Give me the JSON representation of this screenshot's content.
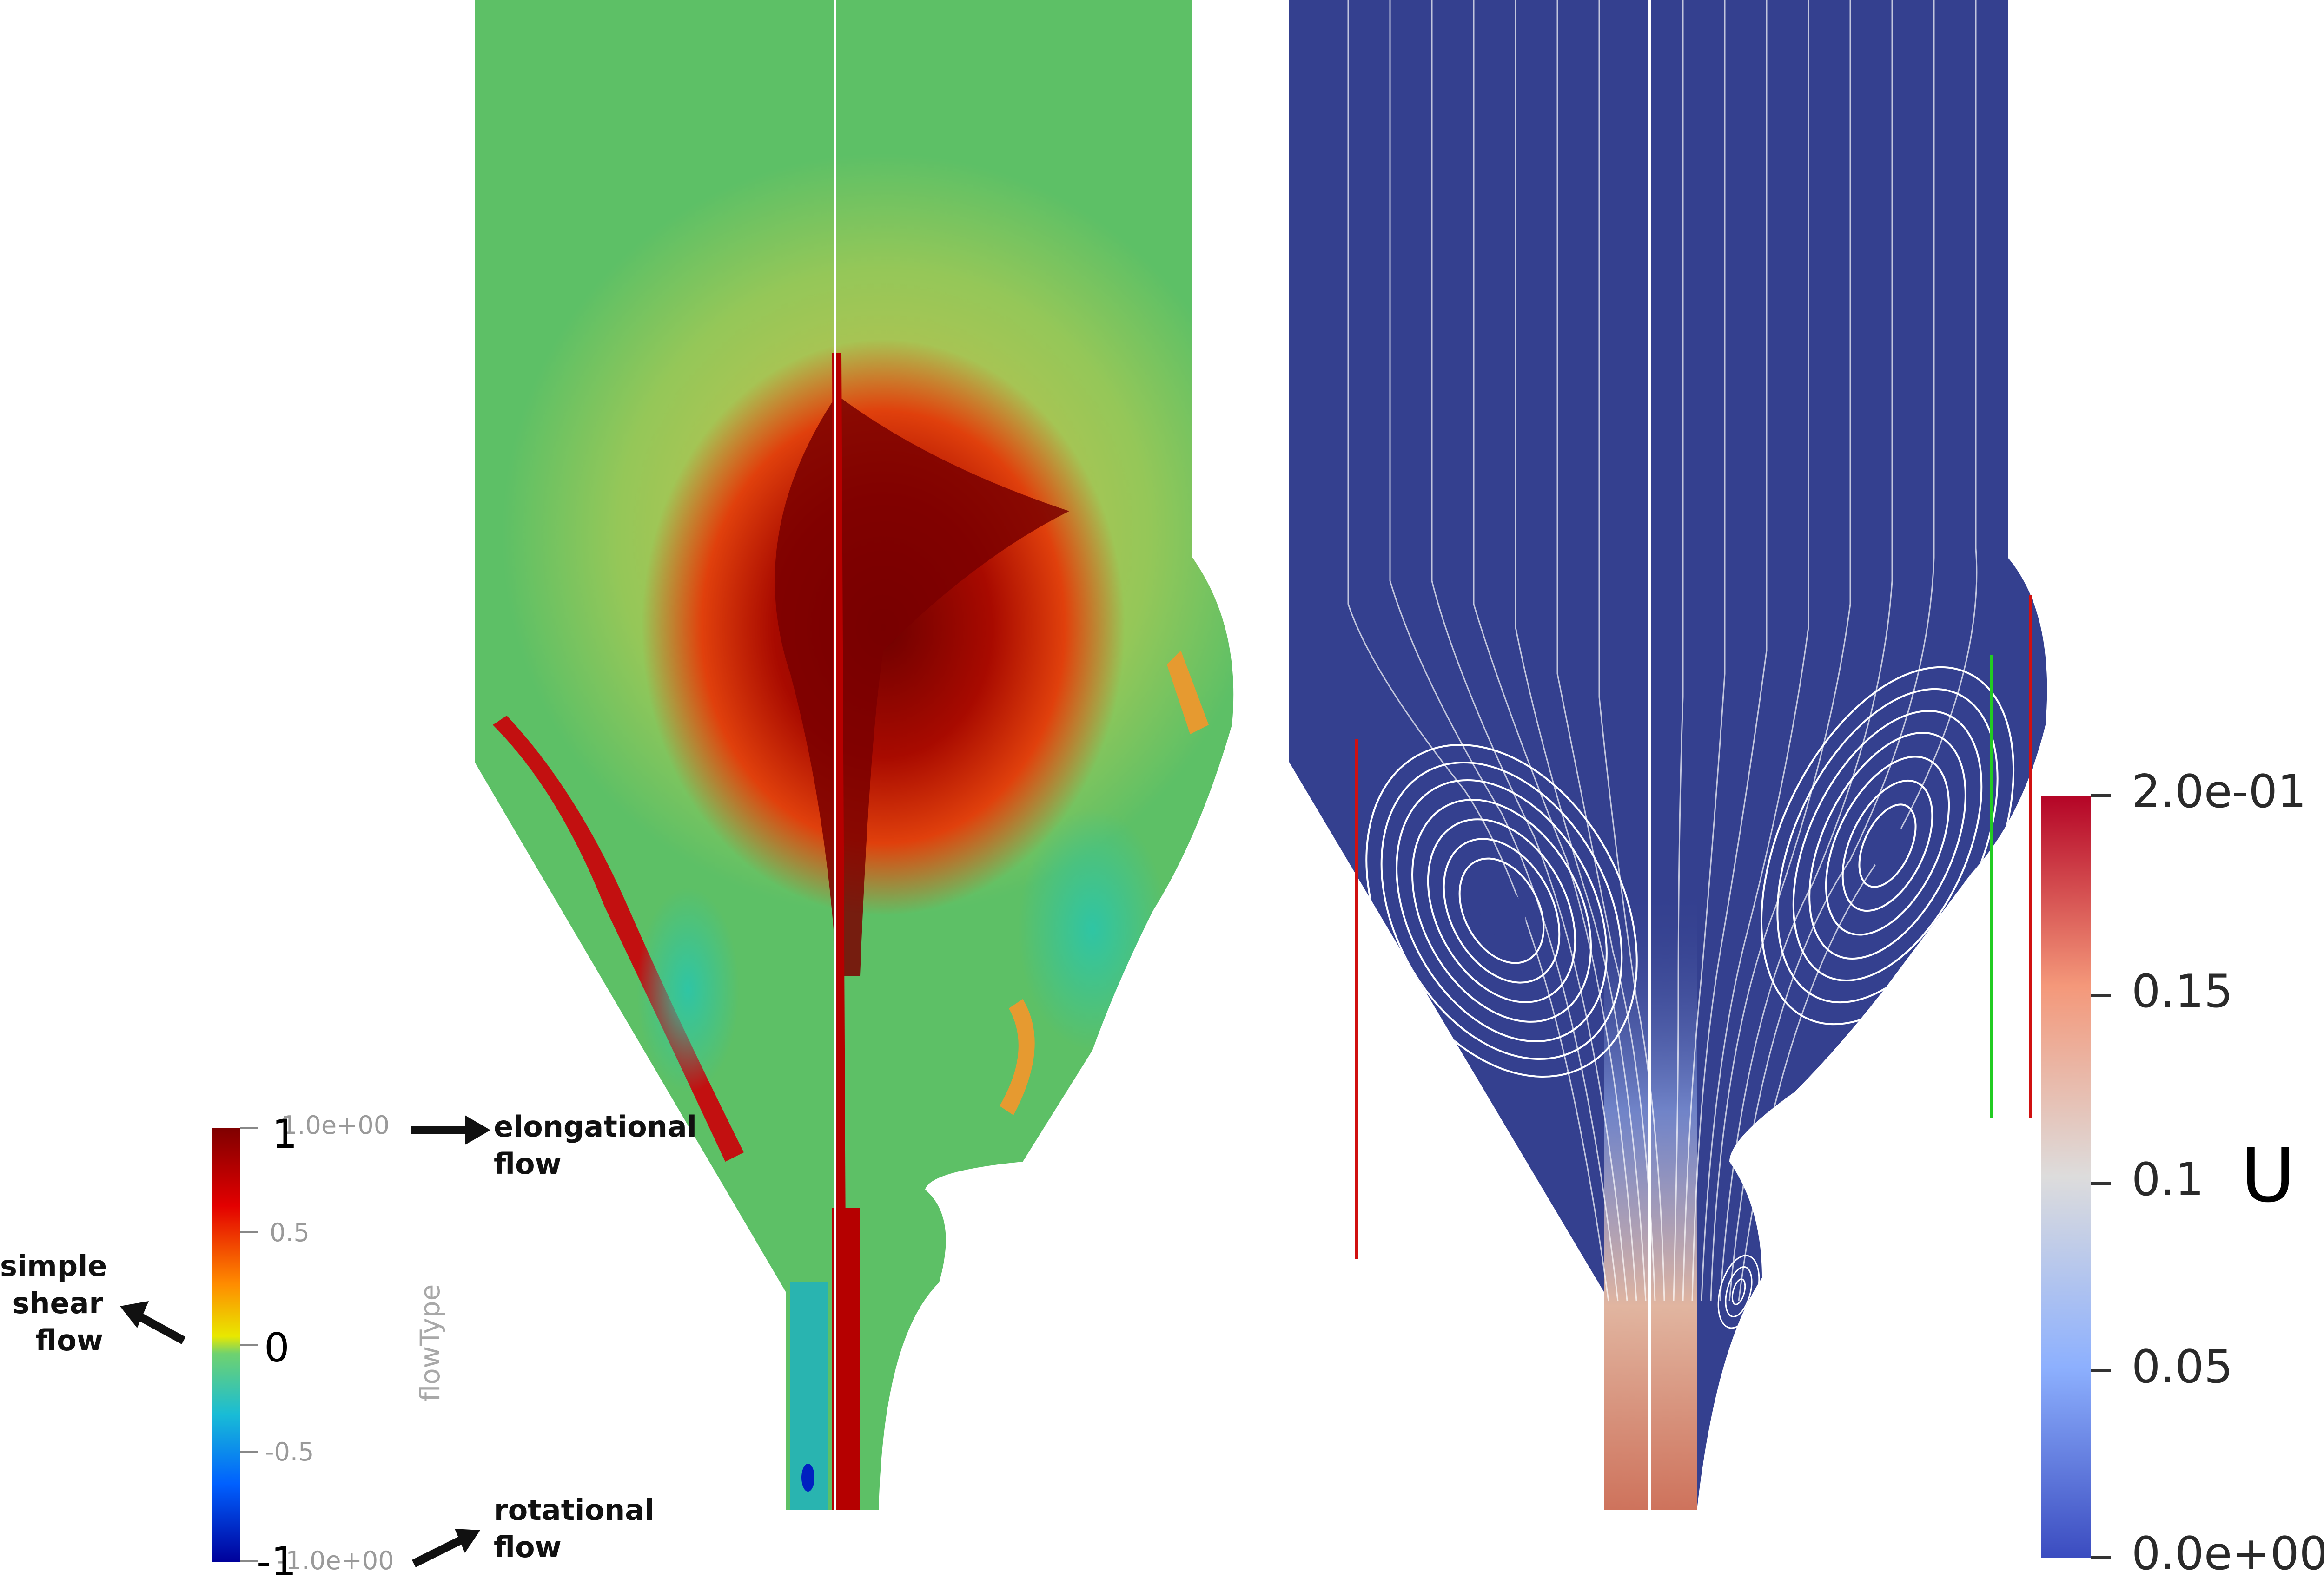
{
  "left_panel": {
    "colorbar": {
      "title": "flowType",
      "range_labels": {
        "max": "1.0e+00",
        "min": "-1.0e+00"
      },
      "ticks_small": [
        "0.5",
        "-0.5"
      ],
      "ticks_big": {
        "top": "1",
        "middle": "0",
        "bottom": "-1"
      },
      "colors": [
        "#7f0000",
        "#e30000",
        "#ff8c00",
        "#e8e800",
        "#6fd26f",
        "#19bcd6",
        "#0060ff",
        "#00009a"
      ]
    },
    "annotations": {
      "elongational": [
        "elongational",
        "flow"
      ],
      "shear": [
        "simple",
        "shear",
        "flow"
      ],
      "rotational": [
        "rotational",
        "flow"
      ]
    },
    "field_colors": {
      "background": "#5dc066",
      "high": "#7a0000",
      "mid": "#d42a10",
      "warm": "#eaa03a"
    }
  },
  "right_panel": {
    "colorbar": {
      "title": "U",
      "ticks": [
        "2.0e-01",
        "0.15",
        "0.1",
        "0.05",
        "0.0e+00"
      ],
      "colors": [
        "#b40426",
        "#f4987a",
        "#dddcdc",
        "#8db0fe",
        "#3b4cc0"
      ]
    },
    "field_colors": {
      "background": "#34408f",
      "streamline": "#ffffff",
      "jet": "#d06a4e"
    },
    "marker_line_colors": [
      "#d01010",
      "#22cc22"
    ]
  }
}
